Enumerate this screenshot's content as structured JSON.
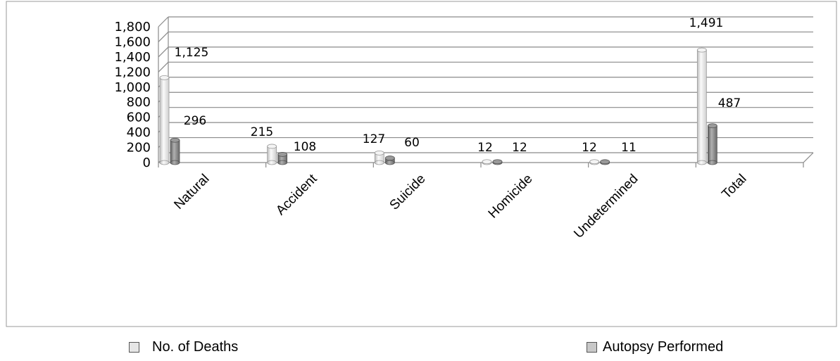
{
  "chart_data": {
    "type": "bar",
    "title": "",
    "xlabel": "",
    "ylabel": "",
    "categories": [
      "Natural",
      "Accident",
      "Suicide",
      "Homicide",
      "Undetermined",
      "Total"
    ],
    "series": [
      {
        "name": "No. of Deaths",
        "values": [
          1125,
          215,
          127,
          12,
          12,
          1491
        ],
        "color": "#e6e6e6"
      },
      {
        "name": "Autopsy Performed",
        "values": [
          296,
          108,
          60,
          12,
          11,
          487
        ],
        "color": "#8c8c8c"
      }
    ],
    "data_labels": [
      [
        "1,125",
        "215",
        "127",
        "12",
        "12",
        "1,491"
      ],
      [
        "296",
        "108",
        "60",
        "12",
        "11",
        "487"
      ]
    ],
    "y_ticks": [
      "0",
      "200",
      "400",
      "600",
      "800",
      "1,000",
      "1,200",
      "1,400",
      "1,600",
      "1,800"
    ],
    "ylim": [
      0,
      1800
    ],
    "grid": true,
    "legend_position": "bottom"
  }
}
